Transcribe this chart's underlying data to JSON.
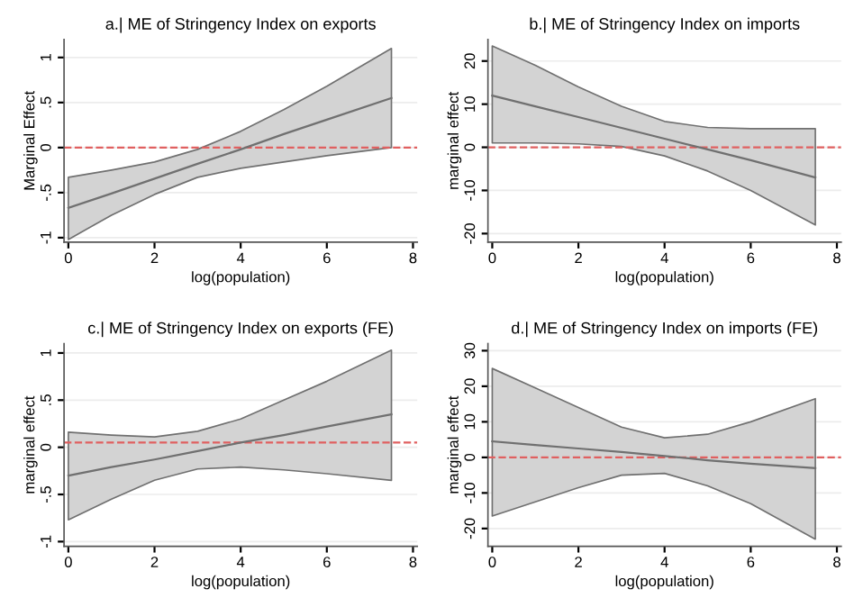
{
  "chart_data": [
    {
      "type": "line",
      "title": "a.| ME of Stringency Index on exports",
      "xlabel": "log(population)",
      "ylabel": "Marginal Effect",
      "xlim": [
        -0.1,
        8.1
      ],
      "xticks": [
        0,
        2,
        4,
        6,
        8
      ],
      "ylim": [
        -1.05,
        1.2
      ],
      "yticks": [
        {
          "value": -1,
          "label": "-1"
        },
        {
          "value": -0.5,
          "label": "-.5"
        },
        0,
        {
          "value": 0.5,
          "label": ".5"
        },
        1
      ],
      "grid": "y",
      "legend": false,
      "series": [
        {
          "color": "#707070",
          "x": [
            0,
            1,
            2,
            3,
            4,
            5,
            6,
            7.5
          ],
          "values": [
            -0.67,
            -0.51,
            -0.345,
            -0.18,
            -0.02,
            0.15,
            0.31,
            0.55
          ],
          "lower": [
            -1.02,
            -0.75,
            -0.52,
            -0.33,
            -0.23,
            -0.16,
            -0.09,
            0.0
          ],
          "upper": [
            -0.33,
            -0.25,
            -0.16,
            -0.02,
            0.18,
            0.42,
            0.68,
            1.1
          ]
        }
      ],
      "ref_lines": [
        {
          "axis": "y",
          "value": 0,
          "color": "#e06060",
          "line_style": "dashed"
        }
      ]
    },
    {
      "type": "line",
      "title": "b.| ME of Stringency Index on imports",
      "xlabel": "log(population)",
      "ylabel": "marginal effect",
      "xlim": [
        -0.1,
        8.1
      ],
      "xticks": [
        0,
        2,
        4,
        6,
        8
      ],
      "ylim": [
        -22,
        25
      ],
      "yticks": [
        -20,
        -10,
        0,
        10,
        20
      ],
      "grid": "y",
      "legend": false,
      "series": [
        {
          "color": "#707070",
          "x": [
            0,
            1,
            2,
            3,
            4,
            5,
            6,
            7.5
          ],
          "values": [
            12,
            9.5,
            7,
            4.5,
            2,
            -0.5,
            -3,
            -7
          ],
          "lower": [
            1,
            1,
            0.8,
            0.2,
            -2,
            -5.5,
            -10,
            -18
          ],
          "upper": [
            23.5,
            19,
            14,
            9.5,
            6,
            4.6,
            4.3,
            4.3
          ]
        }
      ],
      "ref_lines": [
        {
          "axis": "y",
          "value": 0,
          "color": "#e06060",
          "line_style": "dashed"
        }
      ]
    },
    {
      "type": "line",
      "title": "c.| ME of Stringency Index on exports (FE)",
      "xlabel": "log(population)",
      "ylabel": "marginal effect",
      "xlim": [
        -0.1,
        8.1
      ],
      "xticks": [
        0,
        2,
        4,
        6,
        8
      ],
      "ylim": [
        -1.05,
        1.1
      ],
      "yticks": [
        {
          "value": -1,
          "label": "-1"
        },
        {
          "value": -0.5,
          "label": "-.5"
        },
        0,
        {
          "value": 0.5,
          "label": ".5"
        },
        1
      ],
      "grid": "y",
      "legend": false,
      "series": [
        {
          "color": "#707070",
          "x": [
            0,
            1,
            2,
            3,
            4,
            5,
            6,
            7.5
          ],
          "values": [
            -0.3,
            -0.21,
            -0.13,
            -0.04,
            0.05,
            0.13,
            0.22,
            0.35
          ],
          "lower": [
            -0.77,
            -0.55,
            -0.35,
            -0.23,
            -0.21,
            -0.24,
            -0.28,
            -0.35
          ],
          "upper": [
            0.16,
            0.13,
            0.11,
            0.17,
            0.3,
            0.5,
            0.7,
            1.03
          ]
        }
      ],
      "ref_lines": [
        {
          "axis": "y",
          "value": 0.05,
          "color": "#e06060",
          "line_style": "dashed"
        }
      ]
    },
    {
      "type": "line",
      "title": "d.| ME of Stringency Index on imports (FE)",
      "xlabel": "log(population)",
      "ylabel": "marginal effect",
      "xlim": [
        -0.1,
        8.1
      ],
      "xticks": [
        0,
        2,
        4,
        6,
        8
      ],
      "ylim": [
        -25,
        32
      ],
      "yticks": [
        -20,
        -10,
        0,
        10,
        20,
        30
      ],
      "grid": "y",
      "legend": false,
      "series": [
        {
          "color": "#707070",
          "x": [
            0,
            1,
            2,
            3,
            4,
            5,
            6,
            7.5
          ],
          "values": [
            4.5,
            3.5,
            2.5,
            1.5,
            0.4,
            -0.8,
            -1.8,
            -3
          ],
          "lower": [
            -16.5,
            -12.5,
            -8.5,
            -5,
            -4.5,
            -8,
            -13,
            -23
          ],
          "upper": [
            25,
            19.5,
            14,
            8.5,
            5.5,
            6.5,
            10,
            16.5
          ]
        }
      ],
      "ref_lines": [
        {
          "axis": "y",
          "value": 0,
          "color": "#e06060",
          "line_style": "dashed"
        }
      ]
    }
  ]
}
